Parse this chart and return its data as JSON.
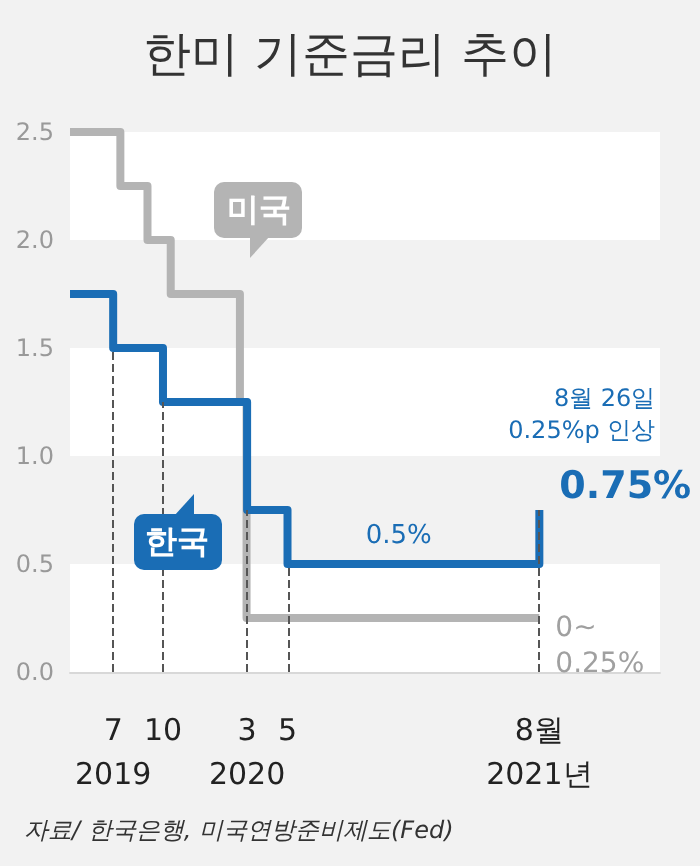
{
  "chart_data": {
    "type": "step",
    "title": "한미 기준금리 추이",
    "series": [
      {
        "name": "미국",
        "color": "#b4b4b4",
        "x": [
          "2019-05-01",
          "2019-07-31",
          "2019-09-18",
          "2019-10-30",
          "2020-03-03",
          "2020-03-15",
          "2021-08-26"
        ],
        "values": [
          2.5,
          2.25,
          2.0,
          1.75,
          1.25,
          0.25,
          0.25
        ]
      },
      {
        "name": "한국",
        "color": "#1a6db5",
        "x": [
          "2019-05-01",
          "2019-07-18",
          "2019-10-16",
          "2020-03-16",
          "2020-05-28",
          "2021-08-26"
        ],
        "values": [
          1.75,
          1.5,
          1.25,
          0.75,
          0.5,
          0.75
        ]
      }
    ],
    "xlim": [
      "2019-05-01",
      "2022-04-01"
    ],
    "xticks": [
      {
        "value": "2019-07-18",
        "label": "7\n2019"
      },
      {
        "value": "2019-10-16",
        "label": "10"
      },
      {
        "value": "2020-03-16",
        "label": "3\n2020"
      },
      {
        "value": "2020-05-28",
        "label": "5"
      },
      {
        "value": "2021-08-26",
        "label": "8월\n2021년"
      }
    ],
    "ylim": [
      0,
      2.5
    ],
    "yticks": [
      {
        "value": 0,
        "label": "0.0"
      },
      {
        "value": 0.5,
        "label": "0.5"
      },
      {
        "value": 1,
        "label": "1.0"
      },
      {
        "value": 1.5,
        "label": "1.5"
      },
      {
        "value": 2,
        "label": "2.0"
      },
      {
        "value": 2.5,
        "label": "2.5"
      }
    ],
    "bands": [
      {
        "axis": "y",
        "from": 0,
        "to": 0.5,
        "color": "#ffffff"
      },
      {
        "axis": "y",
        "from": 1,
        "to": 1.5,
        "color": "#ffffff"
      },
      {
        "axis": "y",
        "from": 2,
        "to": 2.5,
        "color": "#ffffff"
      }
    ],
    "ref_lines": [
      {
        "axis": "x",
        "value": "2019-07-18",
        "color": "#555555",
        "line_style": "dashed"
      },
      {
        "axis": "x",
        "value": "2019-10-16",
        "color": "#555555",
        "line_style": "dashed"
      },
      {
        "axis": "x",
        "value": "2020-03-16",
        "color": "#555555",
        "line_style": "dashed"
      },
      {
        "axis": "x",
        "value": "2020-05-28",
        "color": "#555555",
        "line_style": "dashed"
      },
      {
        "axis": "x",
        "value": "2021-08-26",
        "color": "#555555",
        "line_style": "dashed"
      }
    ],
    "line_style": "solid",
    "annotations": [
      {
        "text": "0.5%",
        "x": "2020-12-15",
        "y": 0.5
      },
      {
        "text": "8월 26일\n0.25%p 인상",
        "x": "2021-08-26",
        "y": 0.75
      },
      {
        "text": "0.75%",
        "x": "2021-08-26",
        "y": 0.75
      },
      {
        "text": "0~\n0.25%",
        "x": "2021-08-26",
        "y": 0.25
      },
      "자료/ 한국은행, 미국연방준비제도(Fed)"
    ]
  }
}
